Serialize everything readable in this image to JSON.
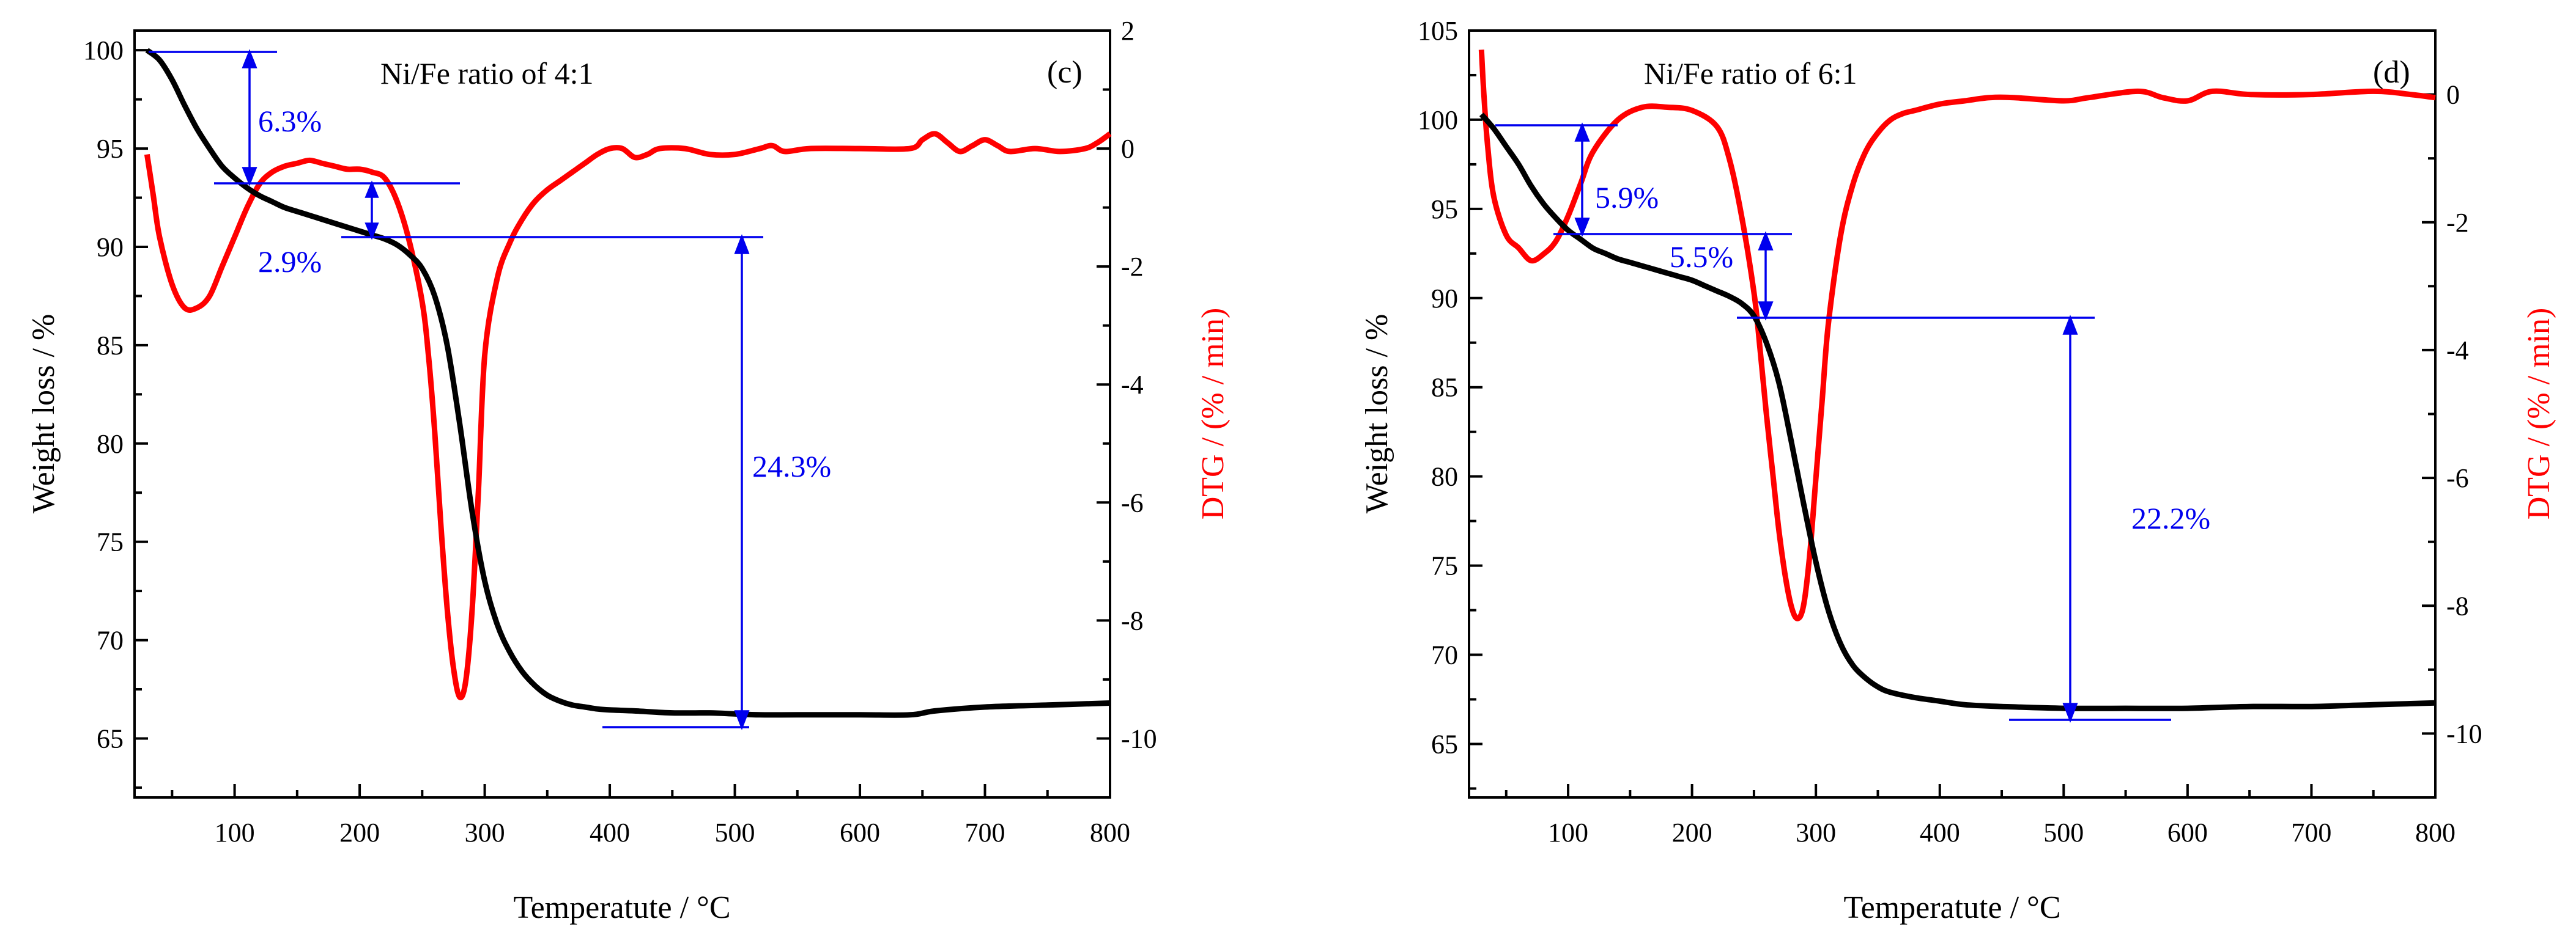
{
  "chart_data": [
    {
      "type": "line",
      "panel_label": "(c)",
      "annotation_title": "Ni/Fe ratio of 4:1",
      "xlabel": "Temperatute / °C",
      "ylabel_left": "Weight loss / %",
      "ylabel_right": "DTG / (% / min)",
      "xlim": [
        20,
        800
      ],
      "ylim_left": [
        62,
        101
      ],
      "ylim_right": [
        -11,
        2
      ],
      "x_ticks": [
        100,
        200,
        300,
        400,
        500,
        600,
        700,
        800
      ],
      "y_left_ticks": [
        65,
        70,
        75,
        80,
        85,
        90,
        95,
        100
      ],
      "y_right_ticks": [
        -10,
        -8,
        -6,
        -4,
        -2,
        0,
        2
      ],
      "tg_series": {
        "name": "Weight loss",
        "color": "#000000",
        "x": [
          30,
          40,
          50,
          60,
          70,
          80,
          90,
          100,
          110,
          120,
          130,
          140,
          150,
          160,
          170,
          180,
          190,
          200,
          210,
          220,
          230,
          240,
          250,
          260,
          270,
          280,
          290,
          300,
          310,
          320,
          330,
          340,
          350,
          360,
          370,
          380,
          390,
          400,
          420,
          450,
          480,
          500,
          520,
          550,
          600,
          640,
          660,
          700,
          750,
          800
        ],
        "y": [
          100,
          99.5,
          98.5,
          97.2,
          96,
          95,
          94.1,
          93.5,
          93,
          92.6,
          92.3,
          92,
          91.8,
          91.6,
          91.4,
          91.2,
          91,
          90.8,
          90.6,
          90.4,
          90.1,
          89.6,
          88.9,
          87.5,
          85,
          81,
          76.5,
          73,
          70.8,
          69.4,
          68.4,
          67.7,
          67.2,
          66.9,
          66.7,
          66.6,
          66.5,
          66.45,
          66.4,
          66.3,
          66.3,
          66.25,
          66.2,
          66.2,
          66.2,
          66.2,
          66.4,
          66.6,
          66.7,
          66.8
        ]
      },
      "dtg_series": {
        "name": "DTG",
        "color": "#ff0000",
        "x": [
          30,
          35,
          40,
          50,
          60,
          70,
          80,
          90,
          100,
          110,
          120,
          130,
          140,
          150,
          160,
          170,
          180,
          190,
          200,
          210,
          220,
          230,
          240,
          250,
          255,
          260,
          265,
          270,
          275,
          280,
          285,
          290,
          295,
          300,
          310,
          320,
          330,
          340,
          350,
          360,
          370,
          380,
          390,
          400,
          410,
          420,
          430,
          440,
          460,
          480,
          500,
          520,
          530,
          540,
          560,
          600,
          640,
          650,
          660,
          670,
          680,
          690,
          700,
          710,
          720,
          740,
          760,
          780,
          790,
          800
        ],
        "y": [
          -0.1,
          -0.8,
          -1.5,
          -2.3,
          -2.7,
          -2.7,
          -2.5,
          -2.0,
          -1.5,
          -1.0,
          -0.6,
          -0.4,
          -0.3,
          -0.25,
          -0.2,
          -0.25,
          -0.3,
          -0.35,
          -0.35,
          -0.4,
          -0.5,
          -0.9,
          -1.6,
          -2.6,
          -3.5,
          -4.8,
          -6.4,
          -7.8,
          -8.8,
          -9.3,
          -9.0,
          -7.8,
          -5.8,
          -3.5,
          -2.2,
          -1.6,
          -1.2,
          -0.9,
          -0.7,
          -0.55,
          -0.4,
          -0.25,
          -0.1,
          0.0,
          0.0,
          -0.15,
          -0.1,
          0.0,
          0.0,
          -0.1,
          -0.1,
          0.0,
          0.05,
          -0.05,
          0.0,
          0.0,
          0.0,
          0.15,
          0.25,
          0.1,
          -0.05,
          0.05,
          0.15,
          0.05,
          -0.05,
          0.0,
          -0.05,
          0.0,
          0.1,
          0.25
        ]
      },
      "annotations": [
        {
          "text": "6.3%",
          "x": 107,
          "y": 96.5
        },
        {
          "text": "2.9%",
          "x": 107,
          "y": 89.9
        },
        {
          "text": "24.3%",
          "x": 510,
          "y": 77.3
        }
      ]
    },
    {
      "type": "line",
      "panel_label": "(d)",
      "annotation_title": "Ni/Fe ratio of 6:1",
      "xlabel": "Temperatute / °C",
      "ylabel_left": "Weight loss / %",
      "ylabel_right": "DTG / (% / min)",
      "xlim": [
        20,
        800
      ],
      "ylim_left": [
        62,
        105
      ],
      "ylim_right": [
        -11,
        1
      ],
      "x_ticks": [
        100,
        200,
        300,
        400,
        500,
        600,
        700,
        800
      ],
      "y_left_ticks": [
        65,
        70,
        75,
        80,
        85,
        90,
        95,
        100,
        105
      ],
      "y_right_ticks": [
        -10,
        -8,
        -6,
        -4,
        -2,
        0
      ],
      "tg_series": {
        "name": "Weight loss",
        "color": "#000000",
        "x": [
          30,
          40,
          50,
          60,
          70,
          80,
          90,
          100,
          110,
          120,
          130,
          140,
          150,
          160,
          170,
          180,
          190,
          200,
          210,
          220,
          230,
          240,
          250,
          260,
          270,
          280,
          290,
          300,
          310,
          320,
          330,
          340,
          350,
          360,
          380,
          400,
          420,
          450,
          500,
          550,
          600,
          650,
          700,
          750,
          800
        ],
        "y": [
          100.3,
          99.5,
          98.5,
          97.5,
          96.3,
          95.3,
          94.5,
          93.8,
          93.3,
          92.8,
          92.5,
          92.2,
          92,
          91.8,
          91.6,
          91.4,
          91.2,
          91,
          90.7,
          90.4,
          90.1,
          89.7,
          89,
          87.5,
          85.3,
          82,
          78.5,
          75.2,
          72.5,
          70.6,
          69.4,
          68.7,
          68.2,
          67.9,
          67.6,
          67.4,
          67.2,
          67.1,
          67.0,
          67.0,
          67.0,
          67.1,
          67.1,
          67.2,
          67.3
        ]
      },
      "dtg_series": {
        "name": "DTG",
        "color": "#ff0000",
        "x": [
          30,
          32,
          35,
          40,
          50,
          60,
          70,
          80,
          90,
          100,
          110,
          120,
          140,
          160,
          180,
          200,
          220,
          230,
          240,
          250,
          255,
          260,
          265,
          270,
          275,
          280,
          285,
          290,
          295,
          300,
          305,
          310,
          320,
          330,
          340,
          350,
          360,
          370,
          380,
          400,
          420,
          440,
          460,
          500,
          520,
          560,
          580,
          600,
          620,
          650,
          700,
          750,
          780,
          800
        ],
        "y": [
          0.7,
          0.0,
          -0.8,
          -1.6,
          -2.2,
          -2.4,
          -2.6,
          -2.5,
          -2.3,
          -1.9,
          -1.4,
          -0.9,
          -0.4,
          -0.2,
          -0.2,
          -0.25,
          -0.5,
          -1.0,
          -1.9,
          -3.1,
          -4.0,
          -5.0,
          -5.9,
          -6.8,
          -7.5,
          -8.0,
          -8.2,
          -8.0,
          -7.2,
          -6.0,
          -4.8,
          -3.6,
          -2.2,
          -1.4,
          -0.9,
          -0.6,
          -0.4,
          -0.3,
          -0.25,
          -0.15,
          -0.1,
          -0.05,
          -0.05,
          -0.1,
          -0.05,
          0.05,
          -0.05,
          -0.1,
          0.05,
          0.0,
          0.0,
          0.05,
          0.0,
          -0.05
        ]
      },
      "annotations": [
        {
          "text": "5.9%",
          "x": 105,
          "y": 97.5
        },
        {
          "text": "5.5%",
          "x": 240,
          "y": 92.7
        },
        {
          "text": "22.2%",
          "x": 305,
          "y": 79.3
        }
      ]
    }
  ]
}
